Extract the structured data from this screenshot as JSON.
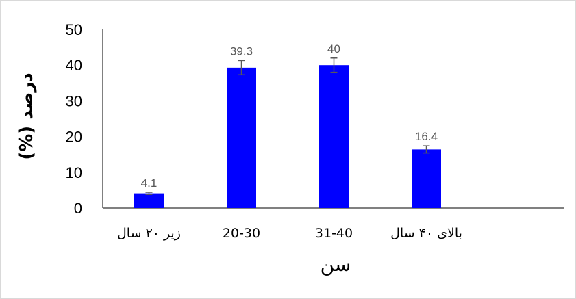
{
  "chart_data": {
    "type": "bar",
    "categories": [
      "زیر ۲۰ سال",
      "20-30",
      "31-40",
      "بالای ۴۰ سال"
    ],
    "values": [
      4.1,
      39.3,
      40,
      16.4
    ],
    "data_labels": [
      "4.1",
      "39.3",
      "40",
      "16.4"
    ],
    "error": [
      0.3,
      2.0,
      2.0,
      1.0
    ],
    "title": "",
    "xlabel": "سن",
    "ylabel": "درصد (%)",
    "ylim": [
      0,
      50
    ],
    "yticks": [
      0,
      10,
      20,
      30,
      40,
      50
    ],
    "ytick_labels": [
      "0",
      "10",
      "20",
      "30",
      "40",
      "50"
    ],
    "grid": false,
    "legend": "none",
    "bar_color": "#0000ff",
    "error_bar_color": "#595959"
  }
}
